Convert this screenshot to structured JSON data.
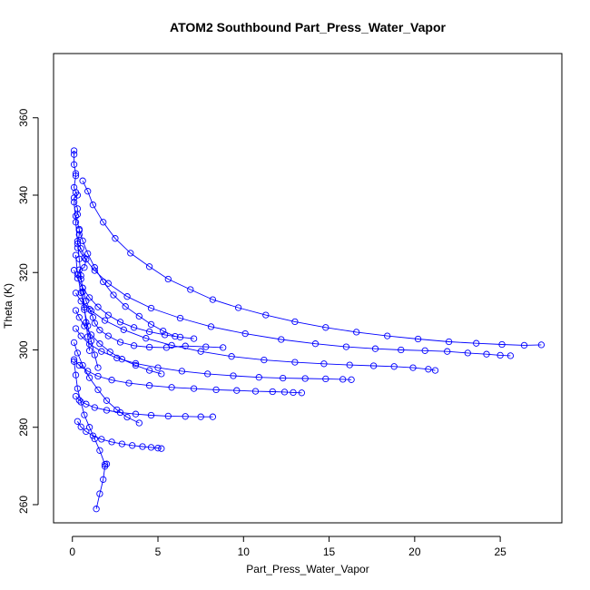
{
  "chart_data": {
    "type": "scatter",
    "title": "ATOM2 Southbound Part_Press_Water_Vapor",
    "xlabel": "Part_Press_Water_Vapor",
    "ylabel": "Theta (K)",
    "xlim": [
      -1.1,
      28.6
    ],
    "ylim": [
      255.3,
      376.6
    ],
    "xticks": [
      0,
      5,
      10,
      15,
      20,
      25
    ],
    "yticks": [
      260,
      280,
      300,
      320,
      340,
      360
    ],
    "grid": false,
    "legend": "none",
    "point_style": "open-circle",
    "connect_points": true,
    "color": "#0000ff",
    "series": [
      {
        "x": [
          0.1,
          0.1,
          0.1,
          0.2,
          0.2,
          0.1,
          0.2,
          0.3,
          0.1,
          0.3,
          0.3,
          0.2,
          0.4,
          0.4,
          0.3,
          0.5,
          0.8,
          0.7,
          0.4,
          0.5,
          0.6,
          0.8,
          1.0,
          1.2,
          1.3,
          1.6,
          2.1,
          2.8,
          3.6,
          4.5,
          5.5,
          6.6,
          7.8,
          8.8
        ],
        "y": [
          351.5,
          350.5,
          347.9,
          345.6,
          345.0,
          342.0,
          340.7,
          340.0,
          339.3,
          336.5,
          335.0,
          334.6,
          331.2,
          329.8,
          327.4,
          326.2,
          323.4,
          321.3,
          320.7,
          318.3,
          316.0,
          312.7,
          310.5,
          308.4,
          306.9,
          305.1,
          303.6,
          302.0,
          301.1,
          300.7,
          300.6,
          301.0,
          300.8,
          300.6
        ]
      },
      {
        "x": [
          0.6,
          0.9,
          1.2,
          1.8,
          2.5,
          3.4,
          4.5,
          5.6,
          6.9,
          8.2,
          9.7,
          11.3,
          13.0,
          14.8,
          16.6,
          18.4,
          20.2,
          22.0,
          23.6,
          25.1,
          26.4,
          27.4
        ],
        "y": [
          343.7,
          341.0,
          337.5,
          333.0,
          328.8,
          325.0,
          321.5,
          318.3,
          315.6,
          313.0,
          310.9,
          309.0,
          307.3,
          305.8,
          304.6,
          303.6,
          302.8,
          302.1,
          301.7,
          301.4,
          301.2,
          301.3
        ]
      },
      {
        "x": [
          0.3,
          0.7,
          1.3,
          2.1,
          3.2,
          4.6,
          6.3,
          8.1,
          10.1,
          12.2,
          14.2,
          16.0,
          17.7,
          19.2,
          20.6,
          21.9,
          23.1,
          24.2,
          25.0,
          25.6
        ],
        "y": [
          326.4,
          323.8,
          320.5,
          317.2,
          313.8,
          310.8,
          308.2,
          306.0,
          304.2,
          302.7,
          301.6,
          300.8,
          300.3,
          300.0,
          299.8,
          299.6,
          299.2,
          298.9,
          298.6,
          298.5
        ]
      },
      {
        "x": [
          0.2,
          0.5,
          1.1,
          1.9,
          3.0,
          4.3,
          5.8,
          7.5,
          9.3,
          11.2,
          13.0,
          14.7,
          16.2,
          17.6,
          18.8,
          19.9,
          20.8,
          21.2
        ],
        "y": [
          314.7,
          312.6,
          310.1,
          307.6,
          305.2,
          303.0,
          301.2,
          299.6,
          298.3,
          297.4,
          296.8,
          296.4,
          296.1,
          295.9,
          295.7,
          295.4,
          295.0,
          294.7
        ]
      },
      {
        "x": [
          0.2,
          0.5,
          1.0,
          1.7,
          2.6,
          3.7,
          5.0,
          6.4,
          7.9,
          9.4,
          10.9,
          12.3,
          13.6,
          14.8,
          15.8,
          16.3
        ],
        "y": [
          305.5,
          303.6,
          301.5,
          299.6,
          297.9,
          296.5,
          295.4,
          294.5,
          293.8,
          293.3,
          292.9,
          292.7,
          292.6,
          292.5,
          292.4,
          292.3
        ]
      },
      {
        "x": [
          0.1,
          0.4,
          0.9,
          1.5,
          2.3,
          3.3,
          4.5,
          5.8,
          7.1,
          8.4,
          9.6,
          10.7,
          11.7,
          12.4,
          12.9,
          13.4
        ],
        "y": [
          297.5,
          296.0,
          294.5,
          293.2,
          292.2,
          291.4,
          290.8,
          290.3,
          290.0,
          289.7,
          289.5,
          289.3,
          289.2,
          289.1,
          289.0,
          288.9
        ]
      },
      {
        "x": [
          0.2,
          0.4,
          0.8,
          1.3,
          2.0,
          2.8,
          3.7,
          4.6,
          5.6,
          6.6,
          7.5,
          8.2
        ],
        "y": [
          288.0,
          287.0,
          286.0,
          285.1,
          284.4,
          283.8,
          283.4,
          283.1,
          282.9,
          282.8,
          282.7,
          282.7
        ]
      },
      {
        "x": [
          0.3,
          0.5,
          0.8,
          1.2,
          1.7,
          2.3,
          2.9,
          3.5,
          4.1,
          4.6,
          5.0,
          5.2
        ],
        "y": [
          281.5,
          280.1,
          278.9,
          277.8,
          276.9,
          276.2,
          275.7,
          275.3,
          275.0,
          274.8,
          274.6,
          274.5
        ]
      },
      {
        "x": [
          0.1,
          0.2,
          0.3,
          0.5,
          0.7,
          1.0,
          1.3,
          1.6,
          1.9
        ],
        "y": [
          297.0,
          293.5,
          290.0,
          286.5,
          283.2,
          280.0,
          277.0,
          274.0,
          270.4
        ]
      },
      {
        "x": [
          2.0,
          1.9,
          1.8,
          1.6,
          1.4
        ],
        "y": [
          270.5,
          269.9,
          266.5,
          262.8,
          258.9
        ]
      },
      {
        "x": [
          0.4,
          0.6,
          0.9,
          1.3,
          1.8,
          2.4,
          3.1,
          3.9,
          4.6,
          5.3,
          6.0
        ],
        "y": [
          330.9,
          328.2,
          324.9,
          321.3,
          317.6,
          314.2,
          311.2,
          308.7,
          306.6,
          304.9,
          303.5
        ]
      },
      {
        "x": [
          0.1,
          0.3,
          0.6,
          1.0,
          1.5,
          2.1,
          2.8,
          3.6,
          4.5,
          5.4,
          6.3,
          7.1
        ],
        "y": [
          320.6,
          318.5,
          316.0,
          313.5,
          311.1,
          309.0,
          307.2,
          305.8,
          304.7,
          303.9,
          303.3,
          302.9
        ]
      },
      {
        "x": [
          0.2,
          0.4,
          0.7,
          1.1,
          1.6,
          2.2,
          2.9,
          3.7,
          4.5,
          5.2
        ],
        "y": [
          310.2,
          308.4,
          306.2,
          303.9,
          301.6,
          299.5,
          297.6,
          296.0,
          294.7,
          293.8
        ]
      },
      {
        "x": [
          0.1,
          0.3,
          0.6,
          1.0,
          1.5,
          2.0,
          2.6,
          3.2,
          3.9
        ],
        "y": [
          301.9,
          299.2,
          296.0,
          292.8,
          289.7,
          286.9,
          284.5,
          282.6,
          281.1
        ]
      },
      {
        "x": [
          0.1,
          0.2,
          0.3,
          0.4,
          0.5,
          0.6,
          0.7,
          0.8,
          0.9,
          1.0
        ],
        "y": [
          338.2,
          333.0,
          328.1,
          323.5,
          319.2,
          315.0,
          311.0,
          307.1,
          303.4,
          299.8
        ]
      },
      {
        "x": [
          0.2,
          0.3,
          0.5,
          0.7,
          0.9,
          1.1,
          1.3,
          1.5
        ],
        "y": [
          324.5,
          319.5,
          314.8,
          310.4,
          306.2,
          302.3,
          298.7,
          295.4
        ]
      }
    ]
  }
}
